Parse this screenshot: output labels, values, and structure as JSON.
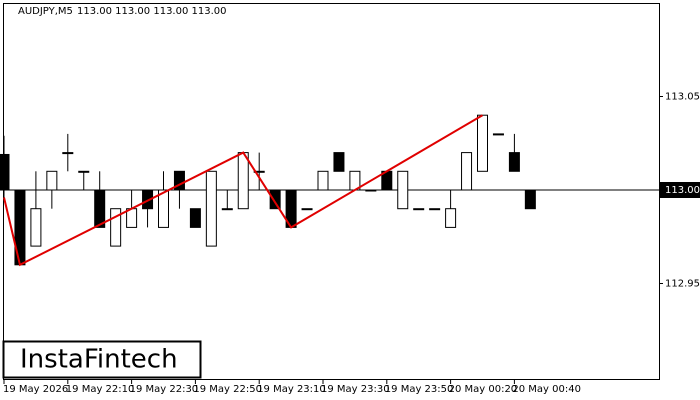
{
  "chart_data": {
    "type": "candlestick",
    "title": "AUDJPY,M5",
    "info": "113.00 113.00 113.00 113.00",
    "watermark": "InstaFintech",
    "categories": [
      "19 May 2026",
      null,
      null,
      null,
      "19 May 22:10",
      null,
      null,
      null,
      "19 May 22:30",
      null,
      null,
      null,
      "19 May 22:50",
      null,
      null,
      null,
      "19 May 23:10",
      null,
      null,
      null,
      "19 May 23:30",
      null,
      null,
      null,
      "19 May 23:50",
      null,
      null,
      null,
      "20 May 00:20",
      null,
      null,
      null,
      "20 May 00:40",
      null
    ],
    "open": [
      113.019,
      113.0,
      112.97,
      113.0,
      113.02,
      113.01,
      113.0,
      112.97,
      112.98,
      113.0,
      112.98,
      113.01,
      112.99,
      112.97,
      112.99,
      112.99,
      113.01,
      113.0,
      113.0,
      112.99,
      113.0,
      113.02,
      113.0,
      113.0,
      113.01,
      112.99,
      112.99,
      112.99,
      112.98,
      113.0,
      113.01,
      113.03,
      113.02,
      113.0
    ],
    "high": [
      113.029,
      113.0,
      113.01,
      113.01,
      113.03,
      113.01,
      113.01,
      112.99,
      113.0,
      113.0,
      113.01,
      113.01,
      112.99,
      113.01,
      113.0,
      113.02,
      113.02,
      113.0,
      113.0,
      112.99,
      113.01,
      113.02,
      113.01,
      113.0,
      113.01,
      113.01,
      112.99,
      112.99,
      113.0,
      113.02,
      113.04,
      113.03,
      113.03,
      113.0
    ],
    "low": [
      112.995,
      112.96,
      112.97,
      112.99,
      113.01,
      113.0,
      112.98,
      112.97,
      112.98,
      112.98,
      112.98,
      112.99,
      112.98,
      112.97,
      112.99,
      112.99,
      113.0,
      112.99,
      112.98,
      112.99,
      113.0,
      113.01,
      113.0,
      113.0,
      113.0,
      112.99,
      112.99,
      112.99,
      112.98,
      113.0,
      113.01,
      113.03,
      113.01,
      112.99
    ],
    "close": [
      113.0,
      112.96,
      112.99,
      113.01,
      113.02,
      113.01,
      112.98,
      112.99,
      112.99,
      112.99,
      113.0,
      113.0,
      112.98,
      113.01,
      112.99,
      113.02,
      113.01,
      112.99,
      112.98,
      112.99,
      113.01,
      113.01,
      113.01,
      113.0,
      113.0,
      113.01,
      112.99,
      112.99,
      112.99,
      113.02,
      113.04,
      113.03,
      113.01,
      112.99
    ],
    "up_color": "#ffffff",
    "down_color": "#000000",
    "pattern": {
      "color": "#e00000",
      "x": [
        0,
        1,
        15,
        18,
        30
      ],
      "values": [
        112.996,
        112.96,
        113.02,
        112.98,
        113.04
      ]
    },
    "current_price": {
      "value": 113,
      "label": "113.00"
    },
    "ylim": [
      112.9,
      113.1
    ],
    "yticks": [
      113.05,
      112.95
    ]
  }
}
